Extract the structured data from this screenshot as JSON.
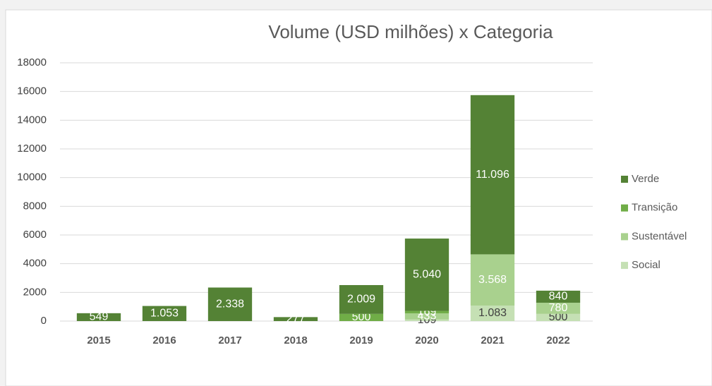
{
  "chart_data": {
    "type": "stacked_bar",
    "title": "Volume (USD milhões) x Categoria",
    "categories": [
      "2015",
      "2016",
      "2017",
      "2018",
      "2019",
      "2020",
      "2021",
      "2022"
    ],
    "series": [
      {
        "name": "Social",
        "color": "#c5e0b4",
        "values": [
          null,
          null,
          null,
          null,
          null,
          109,
          1083,
          500
        ],
        "value_labels": [
          null,
          null,
          null,
          null,
          null,
          "109",
          "1.083",
          "500"
        ]
      },
      {
        "name": "Sustentável",
        "color": "#a9d18e",
        "values": [
          null,
          null,
          null,
          null,
          null,
          433,
          3568,
          780
        ],
        "value_labels": [
          null,
          null,
          null,
          null,
          null,
          "433",
          "3.568",
          "780"
        ]
      },
      {
        "name": "Transição",
        "color": "#70ad47",
        "values": [
          null,
          null,
          null,
          null,
          500,
          169,
          null,
          null
        ],
        "value_labels": [
          null,
          null,
          null,
          null,
          "500",
          "169",
          null,
          null
        ]
      },
      {
        "name": "Verde",
        "color": "#548235",
        "values": [
          549,
          1053,
          2338,
          277,
          2009,
          5040,
          11096,
          840
        ],
        "value_labels": [
          "549",
          "1.053",
          "2.338",
          "277",
          "2.009",
          "5.040",
          "11.096",
          "840"
        ]
      }
    ],
    "ylim": [
      0,
      18000
    ],
    "yticks": [
      0,
      2000,
      4000,
      6000,
      8000,
      10000,
      12000,
      14000,
      16000,
      18000
    ],
    "grid": true,
    "legend": "right"
  }
}
